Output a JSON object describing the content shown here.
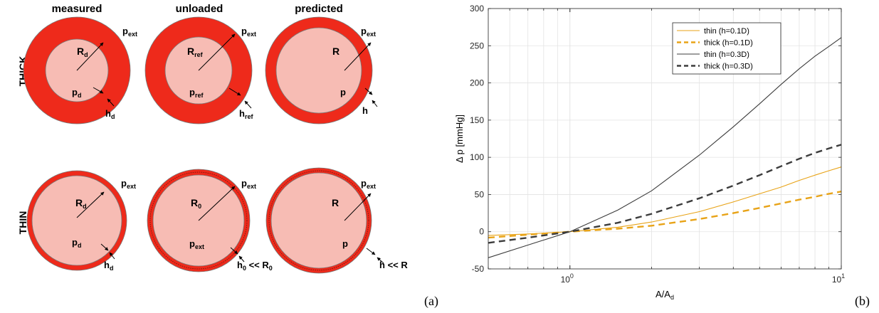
{
  "columns": {
    "measured": "measured",
    "unloaded": "unloaded",
    "predicted": "predicted"
  },
  "rows": {
    "thick": "THICK",
    "thin": "THIN"
  },
  "panel_labels": {
    "a": "(a)",
    "b": "(b)"
  },
  "vessels": {
    "thick_measured": {
      "r_main": "R",
      "r_sub": "d",
      "p_main": "p",
      "p_sub": "d",
      "h_main": "h",
      "h_sub": "d",
      "ext_main": "p",
      "ext_sub": "ext"
    },
    "thick_unloaded": {
      "r_main": "R",
      "r_sub": "ref",
      "p_main": "p",
      "p_sub": "ref",
      "h_main": "h",
      "h_sub": "ref",
      "ext_main": "p",
      "ext_sub": "ext"
    },
    "thick_predicted": {
      "r_main": "R",
      "r_sub": "",
      "p_main": "p",
      "p_sub": "",
      "h_main": "h",
      "h_sub": "",
      "ext_main": "p",
      "ext_sub": "ext"
    },
    "thin_measured": {
      "r_main": "R",
      "r_sub": "d",
      "p_main": "p",
      "p_sub": "d",
      "h_main": "h",
      "h_sub": "d",
      "ext_main": "p",
      "ext_sub": "ext"
    },
    "thin_unloaded": {
      "r_main": "R",
      "r_sub": "0",
      "p_main": "p",
      "p_sub": "ext",
      "h_main": "h",
      "h_sub": "0",
      "h_suffix": " << R",
      "h_suffix_sub": "0",
      "ext_main": "p",
      "ext_sub": "ext"
    },
    "thin_predicted": {
      "r_main": "R",
      "r_sub": "",
      "p_main": "p",
      "p_sub": "",
      "h_main": "h",
      "h_sub": "",
      "h_suffix": " << R",
      "h_suffix_sub": "",
      "ext_main": "p",
      "ext_sub": "ext"
    }
  },
  "colors": {
    "wall": "#ee2a1b",
    "lumen": "#f7bcb4",
    "thin_color": "#e8a317",
    "thick_color": "#3c3c3c"
  },
  "chart_data": {
    "type": "line",
    "xlabel": "A/A",
    "xlabel_sub": "d",
    "ylabel": "Δ p  [mmHg]",
    "x_scale": "log",
    "xlim": [
      0.5,
      10
    ],
    "ylim": [
      -50,
      300
    ],
    "yticks": [
      -50,
      0,
      50,
      100,
      150,
      200,
      250,
      300
    ],
    "xtick_labels": [
      {
        "base": "10",
        "exp": "0"
      },
      {
        "base": "10",
        "exp": "1"
      }
    ],
    "grid": true,
    "legend_position": "top-right",
    "series": [
      {
        "name": "thin (h=0.1D)",
        "color": "#e8a317",
        "style": "solid",
        "x": [
          0.5,
          0.7,
          1,
          1.5,
          2,
          3,
          4,
          5,
          6,
          7,
          8,
          9,
          10
        ],
        "y": [
          -5,
          -3,
          0,
          6,
          13,
          27,
          40,
          51,
          60,
          69,
          76,
          82,
          87
        ]
      },
      {
        "name": "thick (h=0.1D)",
        "color": "#e8a317",
        "style": "dashed",
        "x": [
          0.5,
          0.7,
          1,
          1.5,
          2,
          3,
          4,
          5,
          6,
          7,
          8,
          9,
          10
        ],
        "y": [
          -8,
          -4,
          0,
          4,
          8,
          17,
          25,
          32,
          38,
          43,
          47,
          51,
          54
        ]
      },
      {
        "name": "thin (h=0.3D)",
        "color": "#3c3c3c",
        "style": "solid",
        "x": [
          0.5,
          0.7,
          1,
          1.5,
          2,
          3,
          4,
          5,
          6,
          7,
          8,
          9,
          10
        ],
        "y": [
          -35,
          -18,
          0,
          29,
          55,
          103,
          141,
          172,
          198,
          219,
          236,
          249,
          261
        ]
      },
      {
        "name": "thick (h=0.3D)",
        "color": "#3c3c3c",
        "style": "dashed",
        "x": [
          0.5,
          0.7,
          1,
          1.5,
          2,
          3,
          4,
          5,
          6,
          7,
          8,
          9,
          10
        ],
        "y": [
          -15,
          -8,
          0,
          12,
          24,
          45,
          62,
          76,
          88,
          98,
          106,
          112,
          117
        ]
      }
    ]
  }
}
